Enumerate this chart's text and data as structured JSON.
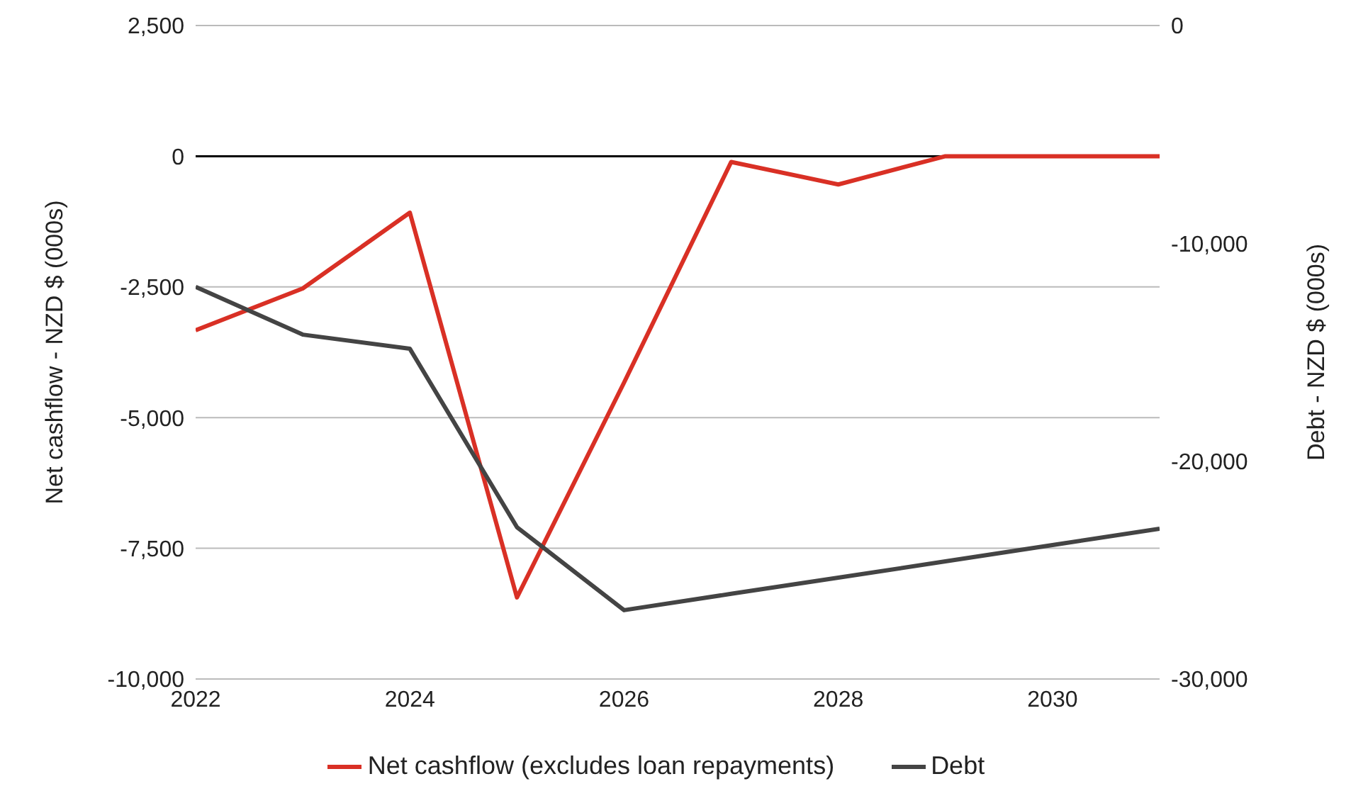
{
  "chart_data": {
    "type": "line",
    "ylabel": "Net cashflow - NZD $ (000s)",
    "y2label": "Debt - NZD $ (000s)",
    "x": [
      2022,
      2023,
      2024,
      2025,
      2026,
      2027,
      2028,
      2029,
      2030,
      2031
    ],
    "series": [
      {
        "name": "Net cashflow (excludes loan repayments)",
        "color": "#d93025",
        "values": [
          -3330,
          -2530,
          -1080,
          -8440,
          -4330,
          -110,
          -540,
          0,
          0,
          0
        ]
      },
      {
        "name": "Debt",
        "color": "#444444",
        "axis": "y2",
        "values": [
          -12000,
          -14190,
          -14840,
          -23030,
          -26840,
          -26090,
          -25350,
          -24600,
          -23850,
          -23100
        ]
      }
    ],
    "xlim": [
      2022,
      2031
    ],
    "xticks": [
      2022,
      2024,
      2026,
      2028,
      2030
    ],
    "ylim": [
      -10000,
      2500
    ],
    "yticks": [
      {
        "value": -10000,
        "label": "-10,000"
      },
      {
        "value": -7500,
        "label": "-7,500"
      },
      {
        "value": -5000,
        "label": "-5,000"
      },
      {
        "value": -2500,
        "label": "-2,500"
      },
      0,
      {
        "value": 2500,
        "label": "2,500"
      }
    ],
    "y2lim": [
      -30000,
      0
    ],
    "y2ticks": [
      {
        "value": -30000,
        "label": "-30,000"
      },
      {
        "value": -20000,
        "label": "-20,000"
      },
      {
        "value": -10000,
        "label": "-10,000"
      },
      0
    ],
    "ref_lines": [
      {
        "axis": "y",
        "value": 0,
        "color": "#000000"
      }
    ],
    "grid": "y",
    "legend": "bottom",
    "marker": "none",
    "line_style": "solid"
  }
}
